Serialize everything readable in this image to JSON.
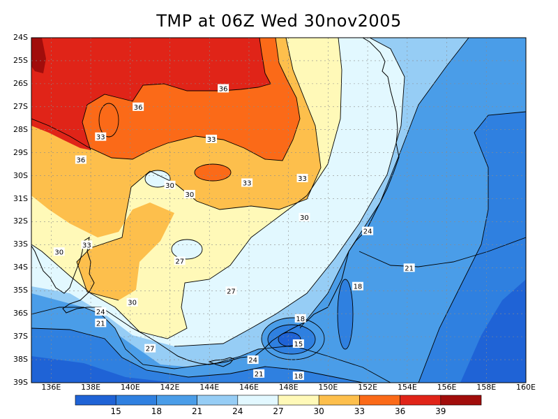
{
  "title": "TMP at 06Z Wed 30nov2005",
  "latitude_labels": [
    "24S",
    "25S",
    "26S",
    "27S",
    "28S",
    "29S",
    "30S",
    "31S",
    "32S",
    "33S",
    "34S",
    "35S",
    "36S",
    "37S",
    "38S",
    "39S"
  ],
  "longitude_labels": [
    "136E",
    "138E",
    "140E",
    "142E",
    "144E",
    "146E",
    "148E",
    "150E",
    "152E",
    "154E",
    "156E",
    "158E",
    "160E"
  ],
  "colorbar": {
    "labels": [
      "15",
      "18",
      "21",
      "24",
      "27",
      "30",
      "33",
      "36",
      "39"
    ],
    "colors": [
      "#1f63d6",
      "#2f80e0",
      "#4a9de8",
      "#96cdf5",
      "#e2f8ff",
      "#fff9b8",
      "#fdbf4c",
      "#fb6a18",
      "#e02418",
      "#a10d0b"
    ]
  },
  "contour_labels": [
    {
      "text": "36",
      "lon": 144.7,
      "lat": -26.2
    },
    {
      "text": "36",
      "lon": 140.4,
      "lat": -27.0
    },
    {
      "text": "33",
      "lon": 138.5,
      "lat": -28.3
    },
    {
      "text": "36",
      "lon": 137.5,
      "lat": -29.3
    },
    {
      "text": "33",
      "lon": 144.1,
      "lat": -28.4
    },
    {
      "text": "33",
      "lon": 148.7,
      "lat": -30.1
    },
    {
      "text": "33",
      "lon": 145.9,
      "lat": -30.3
    },
    {
      "text": "30",
      "lon": 142.0,
      "lat": -30.4
    },
    {
      "text": "30",
      "lon": 143.0,
      "lat": -30.8
    },
    {
      "text": "30",
      "lon": 148.8,
      "lat": -31.8
    },
    {
      "text": "33",
      "lon": 137.8,
      "lat": -33.0
    },
    {
      "text": "30",
      "lon": 136.4,
      "lat": -33.3
    },
    {
      "text": "24",
      "lon": 152.0,
      "lat": -32.4
    },
    {
      "text": "27",
      "lon": 142.5,
      "lat": -33.7
    },
    {
      "text": "21",
      "lon": 154.1,
      "lat": -34.0
    },
    {
      "text": "27",
      "lon": 145.1,
      "lat": -35.0
    },
    {
      "text": "18",
      "lon": 151.5,
      "lat": -34.8
    },
    {
      "text": "30",
      "lon": 140.1,
      "lat": -35.5
    },
    {
      "text": "24",
      "lon": 138.5,
      "lat": -35.9
    },
    {
      "text": "18",
      "lon": 148.6,
      "lat": -36.2
    },
    {
      "text": "21",
      "lon": 138.5,
      "lat": -36.4
    },
    {
      "text": "15",
      "lon": 148.5,
      "lat": -37.3
    },
    {
      "text": "27",
      "lon": 141.0,
      "lat": -37.5
    },
    {
      "text": "24",
      "lon": 146.2,
      "lat": -38.0
    },
    {
      "text": "21",
      "lon": 146.5,
      "lat": -38.6
    },
    {
      "text": "18",
      "lon": 148.5,
      "lat": -38.7
    }
  ]
}
